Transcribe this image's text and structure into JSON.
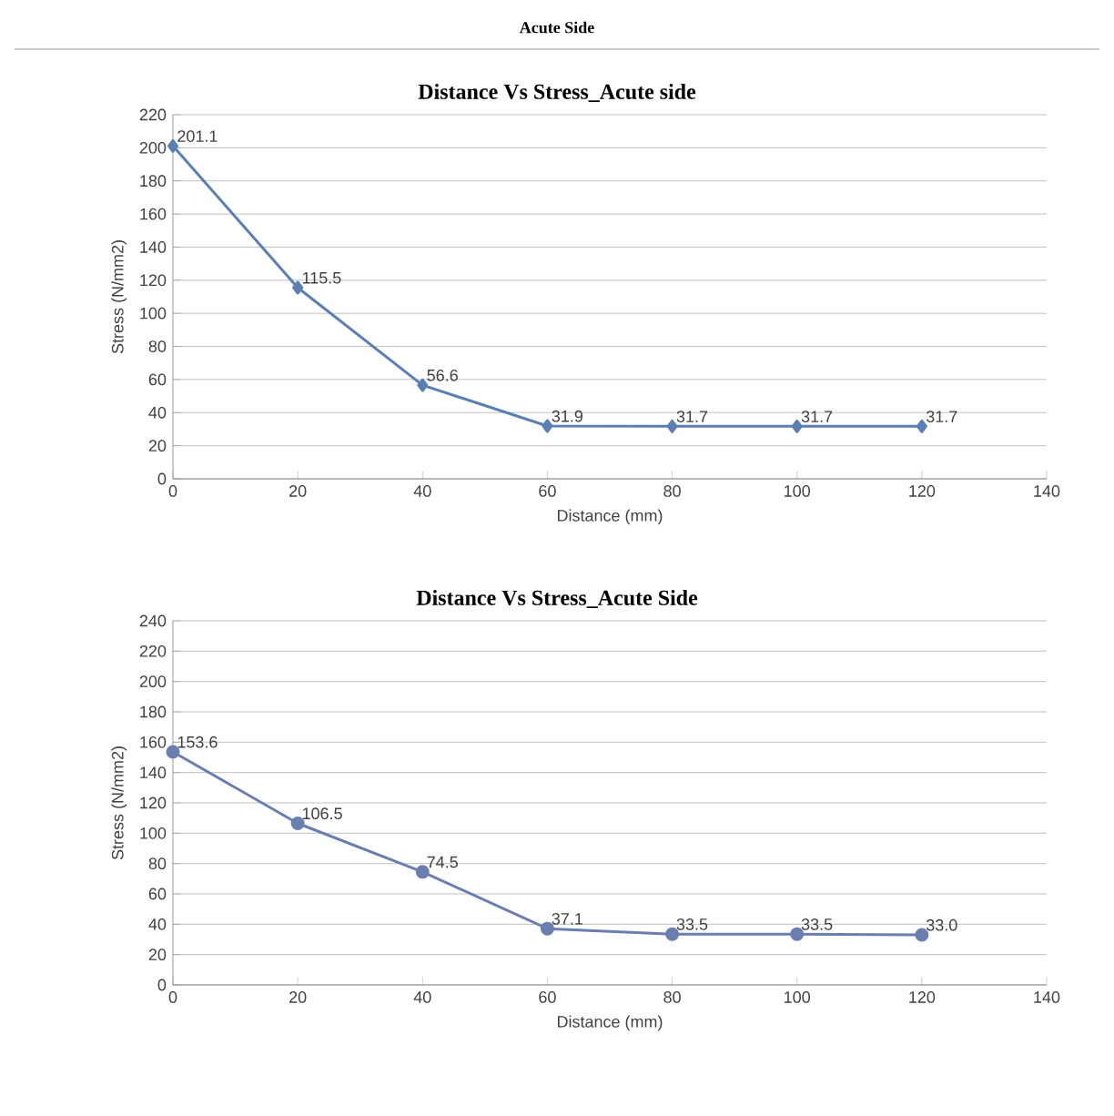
{
  "chart_data": [
    {
      "type": "line",
      "title": "Distance Vs Stress_Acute side",
      "annotations": [
        "Acute Side"
      ],
      "xlabel": "Distance (mm)",
      "ylabel": "Stress (N/mm2)",
      "x": [
        0,
        20,
        40,
        60,
        80,
        100,
        120
      ],
      "series": [
        {
          "color": "#5a7fb5",
          "values": [
            201.1,
            115.5,
            56.6,
            31.9,
            31.7,
            31.7,
            31.7
          ],
          "value_labels": [
            "201.1",
            "115.5",
            "56.6",
            "31.9",
            "31.7",
            "31.7",
            "31.7"
          ]
        }
      ],
      "xlim": [
        0,
        140
      ],
      "xticks": [
        0,
        20,
        40,
        60,
        80,
        100,
        120,
        140
      ],
      "ylim": [
        0,
        220
      ],
      "yticks": [
        0,
        20,
        40,
        60,
        80,
        100,
        120,
        140,
        160,
        180,
        200,
        220
      ],
      "grid": "y",
      "marker": "diamond"
    },
    {
      "type": "line",
      "title": "Distance Vs Stress_Acute Side",
      "xlabel": "Distance (mm)",
      "ylabel": "Stress (N/mm2)",
      "x": [
        0,
        20,
        40,
        60,
        80,
        100,
        120
      ],
      "series": [
        {
          "color": "#6a7fb0",
          "values": [
            153.6,
            106.5,
            74.5,
            37.1,
            33.5,
            33.5,
            33.0
          ],
          "value_labels": [
            "153.6",
            "106.5",
            "74.5",
            "37.1",
            "33.5",
            "33.5",
            "33.0"
          ]
        }
      ],
      "xlim": [
        0,
        140
      ],
      "xticks": [
        0,
        20,
        40,
        60,
        80,
        100,
        120,
        140
      ],
      "ylim": [
        0,
        240
      ],
      "yticks": [
        0,
        20,
        40,
        60,
        80,
        100,
        120,
        140,
        160,
        180,
        200,
        220,
        240
      ],
      "grid": "y",
      "marker": "circle"
    }
  ]
}
